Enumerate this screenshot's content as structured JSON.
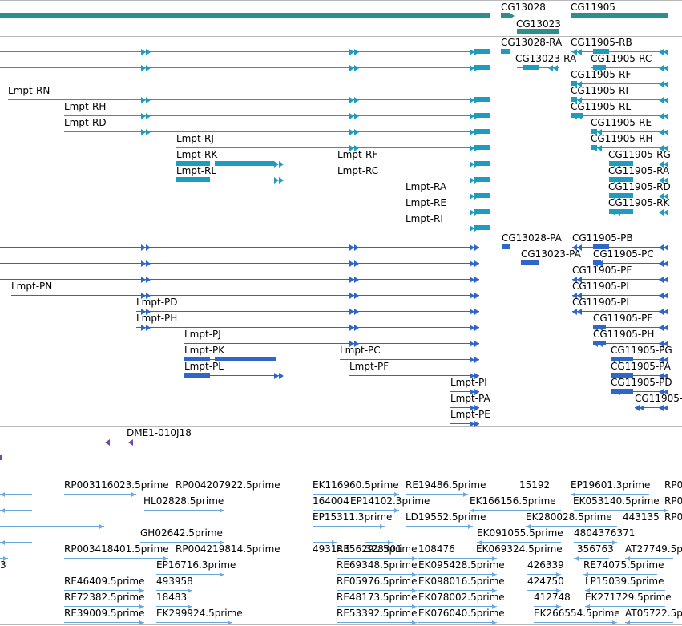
{
  "colors": {
    "gene": "#2e8e8f",
    "transcript": "#1f9bbf",
    "protein": "#2f67c9",
    "insertion": "#6a4bb0",
    "est": "#6ba6dd",
    "separator": "#b9b9b9"
  },
  "direction_names": {
    "forward": "forward-strand",
    "reverse": "reverse-strand"
  },
  "gene_track": {
    "labels": [
      "CG13028",
      "CG13023",
      "CG11905"
    ]
  },
  "transcript_track": {
    "labels": [
      "Lmpt-RN",
      "Lmpt-RH",
      "Lmpt-RD",
      "Lmpt-RJ",
      "Lmpt-RK",
      "Lmpt-RL",
      "Lmpt-RF",
      "Lmpt-RC",
      "Lmpt-RA",
      "Lmpt-RE",
      "Lmpt-RI",
      "CG13028-RA",
      "CG11905-RB",
      "CG13023-RA",
      "CG11905-RC",
      "CG11905-RF",
      "CG11905-RI",
      "CG11905-RL",
      "CG11905-RE",
      "CG11905-RH",
      "CG11905-RG",
      "CG11905-RA",
      "CG11905-RD",
      "CG11905-RK"
    ]
  },
  "protein_track": {
    "labels": [
      "Lmpt-PN",
      "Lmpt-PD",
      "Lmpt-PH",
      "Lmpt-PJ",
      "Lmpt-PK",
      "Lmpt-PL",
      "Lmpt-PC",
      "Lmpt-PF",
      "Lmpt-PI",
      "Lmpt-PA",
      "Lmpt-PE",
      "CG13028-PA",
      "CG11905-PB",
      "CG13023-PA",
      "CG11905-PC",
      "CG11905-PF",
      "CG11905-PI",
      "CG11905-PL",
      "CG11905-PE",
      "CG11905-PH",
      "CG11905-PG",
      "CG11905-PA",
      "CG11905-PD",
      "CG11905-"
    ]
  },
  "insertion_track": {
    "labels": [
      "DME1-010J18"
    ]
  },
  "est_track": {
    "labels": [
      "RP003116023.5prime",
      "RP004207922.5prime",
      "EK116960.5prime",
      "RE19486.5prime",
      "15192",
      "EP19601.3prime",
      "RP0",
      "HL02828.5prime",
      "164004",
      "EP14102.3prime",
      "EK166156.5prime",
      "EK053140.5prime",
      "RP0",
      "EP15311.3prime",
      "LD19552.5prime",
      "EK280028.5prime",
      "443135",
      "RP0",
      "GH02642.5prime",
      "493143",
      "328301",
      "EK091055.5prime",
      "4804376371",
      "RP003418401.5prime",
      "RP004219814.5prime",
      "RE56291.5prime",
      "108476",
      "EK069324.5prime",
      "356763",
      "AT27749.5p",
      "3",
      "EP16716.3prime",
      "RE69348.5prime",
      "EK095428.5prime",
      "426339",
      "RE74075.5prime",
      "RE46409.5prime",
      "493958",
      "RE05976.5prime",
      "EK098016.5prime",
      "424750",
      "LP15039.5prime",
      "RE72382.5prime",
      "18483",
      "RE48173.5prime",
      "EK078002.5prime",
      "412748",
      "EK271729.5prime",
      "RE39009.5prime",
      "EK299924.5prime",
      "RE53392.5prime",
      "EK076040.5prime",
      "EK266554.5prime",
      "AT05722.5p"
    ]
  }
}
